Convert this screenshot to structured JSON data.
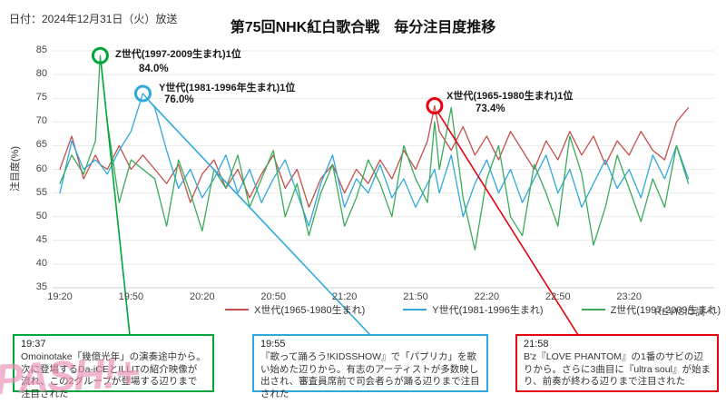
{
  "header": {
    "date_label": "日付：2024年12月31日（火）放送",
    "title": "第75回NHK紅白歌合戦　毎分注目度推移"
  },
  "source": "REVISIO調べ",
  "watermark": "PASH!+",
  "chart_data": {
    "type": "line",
    "title": "第75回NHK紅白歌合戦　毎分注目度推移",
    "xlabel": "",
    "ylabel": "注目度(%)",
    "ylim": [
      35,
      85
    ],
    "y_ticks": [
      85,
      80,
      75,
      70,
      65,
      60,
      55,
      50,
      45,
      40,
      35
    ],
    "x_tick_labels": [
      "19:20",
      "19:50",
      "20:20",
      "20:50",
      "21:20",
      "21:50",
      "22:20",
      "22:50",
      "23:20"
    ],
    "x_tick_interval_minutes": 30,
    "x_start": "19:20",
    "x_end": "23:45",
    "grid": true,
    "legend_position": "bottom",
    "x_minutes": [
      0,
      5,
      10,
      15,
      17,
      20,
      25,
      30,
      35,
      40,
      45,
      50,
      55,
      60,
      65,
      70,
      75,
      80,
      85,
      90,
      95,
      100,
      105,
      110,
      115,
      120,
      125,
      130,
      135,
      140,
      145,
      150,
      155,
      158,
      160,
      165,
      170,
      175,
      180,
      185,
      190,
      195,
      200,
      205,
      210,
      215,
      220,
      225,
      230,
      235,
      240,
      245,
      250,
      255,
      260,
      265
    ],
    "series": [
      {
        "name": "X世代(1965-1980生まれ)",
        "color": "#c2504b",
        "values": [
          60,
          67,
          58,
          63,
          61,
          60,
          65,
          60,
          63,
          60,
          57,
          61,
          53,
          59,
          62,
          56,
          60,
          54,
          59,
          63,
          56,
          60,
          52,
          58,
          61,
          55,
          60,
          57,
          62,
          58,
          64,
          60,
          66,
          73.4,
          68,
          64,
          69,
          63,
          67,
          62,
          68,
          64,
          60,
          66,
          62,
          68,
          63,
          67,
          61,
          66,
          63,
          68,
          64,
          62,
          70,
          73
        ]
      },
      {
        "name": "Y世代(1981-1996生まれ)",
        "color": "#2fa8dc",
        "values": [
          55,
          66,
          60,
          62,
          61,
          59,
          64,
          68,
          76,
          73,
          64,
          56,
          60,
          54,
          58,
          63,
          55,
          60,
          53,
          58,
          62,
          55,
          48,
          57,
          63,
          52,
          58,
          55,
          61,
          54,
          58,
          52,
          57,
          60,
          55,
          63,
          50,
          57,
          62,
          55,
          60,
          53,
          58,
          63,
          55,
          60,
          52,
          57,
          62,
          56,
          60,
          54,
          63,
          58,
          65,
          58
        ]
      },
      {
        "name": "Z世代(1997-2009生まれ)",
        "color": "#3aaa5a",
        "values": [
          57,
          63,
          59,
          66,
          84,
          70,
          53,
          62,
          60,
          58,
          48,
          62,
          55,
          47,
          60,
          56,
          63,
          52,
          58,
          64,
          50,
          57,
          46,
          55,
          61,
          48,
          54,
          62,
          57,
          50,
          65,
          58,
          53,
          70,
          60,
          73,
          54,
          43,
          58,
          65,
          50,
          46,
          61,
          55,
          48,
          67,
          59,
          44,
          52,
          63,
          56,
          49,
          58,
          52,
          65,
          57
        ]
      }
    ],
    "peaks": [
      {
        "series": "Z世代",
        "label": "Z世代(1997-2009生まれ)1位",
        "value_text": "84.0%",
        "time": "19:37",
        "time_minutes": 17,
        "value": 84.0,
        "color": "#00a63c"
      },
      {
        "series": "Y世代",
        "label": "Y世代(1981-1996年生まれ)1位",
        "value_text": "76.0%",
        "time": "19:55",
        "time_minutes": 35,
        "value": 76.0,
        "color": "#2fa8dc"
      },
      {
        "series": "X世代",
        "label": "X世代(1965-1980生まれ)1位",
        "value_text": "73.4%",
        "time": "21:58",
        "time_minutes": 158,
        "value": 73.4,
        "color": "#e60012"
      }
    ]
  },
  "callouts": [
    {
      "time": "19:37",
      "color": "#00a63c",
      "text": "Omoinotake「幾億光年」の演奏途中から。次に登場するDa-iCEとILLITの紹介映像が流れ、この2グループが登場する辺りまで注目された"
    },
    {
      "time": "19:55",
      "color": "#2fa8dc",
      "text": "『歌って踊ろう!KIDSSHOW』で「パプリカ」を歌い始めた辺りから。有志のアーティストが多数映し出され、審査員席前で司会者らが踊る辺りまで注目された"
    },
    {
      "time": "21:58",
      "color": "#e60012",
      "text": "B'z『LOVE PHANTOM』の1番のサビの辺りから。さらに3曲目に『ultra soul』が始まり、前奏が終わる辺りまで注目された"
    }
  ]
}
